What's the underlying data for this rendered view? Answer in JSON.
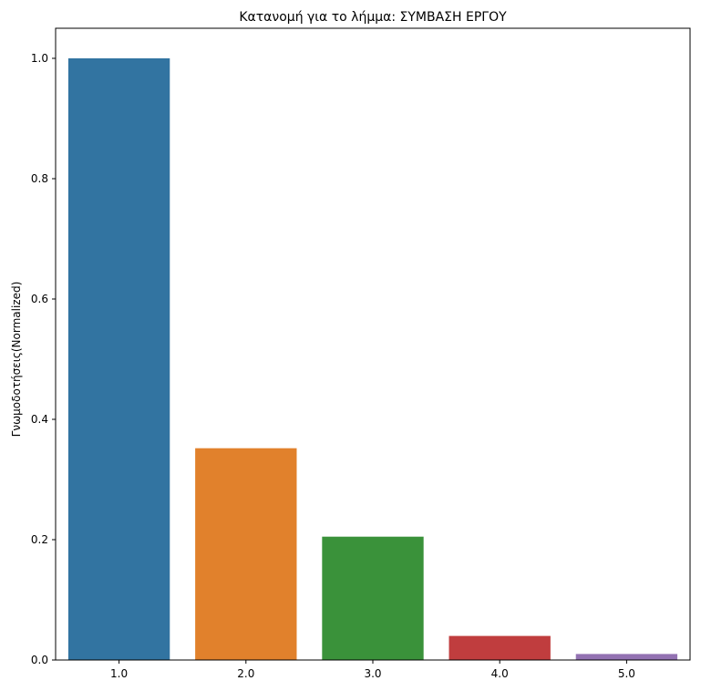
{
  "chart_data": {
    "type": "bar",
    "title": "Κατανομή για το λήμμα: ΣΥΜΒΑΣΗ ΕΡΓΟΥ",
    "xlabel": "",
    "ylabel": "Γνωμοδοτήσεις(Normalized)",
    "categories": [
      "1.0",
      "2.0",
      "3.0",
      "4.0",
      "5.0"
    ],
    "values": [
      1.0,
      0.352,
      0.205,
      0.04,
      0.01
    ],
    "colors": [
      "#3274a1",
      "#e1812c",
      "#3a923a",
      "#c03d3e",
      "#9372b2"
    ],
    "ylim": [
      0,
      1.05
    ],
    "yticks": [
      "0.0",
      "0.2",
      "0.4",
      "0.6",
      "0.8",
      "1.0"
    ],
    "grid": false
  }
}
